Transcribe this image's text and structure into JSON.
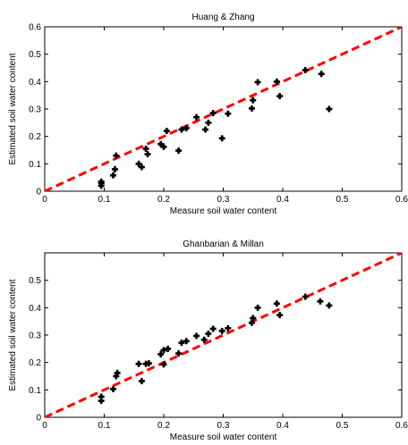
{
  "colors": {
    "ref_line": "#ff0000",
    "points": "#000000",
    "axes": "#000000",
    "background": "#ffffff"
  },
  "chart_data": [
    {
      "type": "scatter",
      "title": "Huang & Zhang",
      "xlabel": "Measure soil water content",
      "ylabel": "Estimated soil water content",
      "xlim": [
        0,
        0.6
      ],
      "ylim": [
        0,
        0.6
      ],
      "xticks": [
        "0",
        "0.1",
        "0.2",
        "0.3",
        "0.4",
        "0.5",
        "0.6"
      ],
      "yticks": [
        "0",
        "0.1",
        "0.2",
        "0.3",
        "0.4",
        "0.5",
        "0.6"
      ],
      "grid": false,
      "reference_line": {
        "style": "dashed",
        "from": [
          0,
          0
        ],
        "to": [
          0.6,
          0.6
        ]
      },
      "points": [
        {
          "x": 0.095,
          "y": 0.02
        },
        {
          "x": 0.095,
          "y": 0.03
        },
        {
          "x": 0.095,
          "y": 0.035
        },
        {
          "x": 0.115,
          "y": 0.058
        },
        {
          "x": 0.118,
          "y": 0.08
        },
        {
          "x": 0.12,
          "y": 0.13
        },
        {
          "x": 0.158,
          "y": 0.1
        },
        {
          "x": 0.163,
          "y": 0.088
        },
        {
          "x": 0.17,
          "y": 0.155
        },
        {
          "x": 0.173,
          "y": 0.135
        },
        {
          "x": 0.195,
          "y": 0.172
        },
        {
          "x": 0.2,
          "y": 0.162
        },
        {
          "x": 0.205,
          "y": 0.22
        },
        {
          "x": 0.225,
          "y": 0.148
        },
        {
          "x": 0.23,
          "y": 0.225
        },
        {
          "x": 0.238,
          "y": 0.23
        },
        {
          "x": 0.255,
          "y": 0.27
        },
        {
          "x": 0.27,
          "y": 0.225
        },
        {
          "x": 0.275,
          "y": 0.25
        },
        {
          "x": 0.283,
          "y": 0.285
        },
        {
          "x": 0.298,
          "y": 0.193
        },
        {
          "x": 0.308,
          "y": 0.283
        },
        {
          "x": 0.348,
          "y": 0.302
        },
        {
          "x": 0.35,
          "y": 0.332
        },
        {
          "x": 0.358,
          "y": 0.398
        },
        {
          "x": 0.39,
          "y": 0.4
        },
        {
          "x": 0.395,
          "y": 0.347
        },
        {
          "x": 0.438,
          "y": 0.442
        },
        {
          "x": 0.465,
          "y": 0.428
        },
        {
          "x": 0.478,
          "y": 0.3
        }
      ]
    },
    {
      "type": "scatter",
      "title": "Ghanbarian & Millan",
      "xlabel": "Measure soil water content",
      "ylabel": "Estimated soil water content",
      "xlim": [
        0,
        0.6
      ],
      "ylim": [
        0,
        0.6
      ],
      "xticks": [
        "0",
        "0.1",
        "0.2",
        "0.3",
        "0.4",
        "0.5",
        "0.6"
      ],
      "yticks": [
        "0",
        "0.1",
        "0.2",
        "0.3",
        "0.4",
        "0.5"
      ],
      "grid": false,
      "reference_line": {
        "style": "dashed",
        "from": [
          0,
          0
        ],
        "to": [
          0.6,
          0.6
        ]
      },
      "points": [
        {
          "x": 0.095,
          "y": 0.06
        },
        {
          "x": 0.095,
          "y": 0.075
        },
        {
          "x": 0.115,
          "y": 0.103
        },
        {
          "x": 0.12,
          "y": 0.15
        },
        {
          "x": 0.122,
          "y": 0.162
        },
        {
          "x": 0.158,
          "y": 0.195
        },
        {
          "x": 0.163,
          "y": 0.132
        },
        {
          "x": 0.17,
          "y": 0.195
        },
        {
          "x": 0.175,
          "y": 0.197
        },
        {
          "x": 0.195,
          "y": 0.23
        },
        {
          "x": 0.2,
          "y": 0.193
        },
        {
          "x": 0.2,
          "y": 0.245
        },
        {
          "x": 0.207,
          "y": 0.25
        },
        {
          "x": 0.225,
          "y": 0.233
        },
        {
          "x": 0.23,
          "y": 0.272
        },
        {
          "x": 0.238,
          "y": 0.278
        },
        {
          "x": 0.255,
          "y": 0.297
        },
        {
          "x": 0.268,
          "y": 0.283
        },
        {
          "x": 0.275,
          "y": 0.305
        },
        {
          "x": 0.283,
          "y": 0.323
        },
        {
          "x": 0.298,
          "y": 0.315
        },
        {
          "x": 0.308,
          "y": 0.325
        },
        {
          "x": 0.348,
          "y": 0.345
        },
        {
          "x": 0.35,
          "y": 0.362
        },
        {
          "x": 0.358,
          "y": 0.4
        },
        {
          "x": 0.39,
          "y": 0.415
        },
        {
          "x": 0.395,
          "y": 0.373
        },
        {
          "x": 0.438,
          "y": 0.44
        },
        {
          "x": 0.463,
          "y": 0.423
        },
        {
          "x": 0.478,
          "y": 0.408
        }
      ]
    }
  ]
}
